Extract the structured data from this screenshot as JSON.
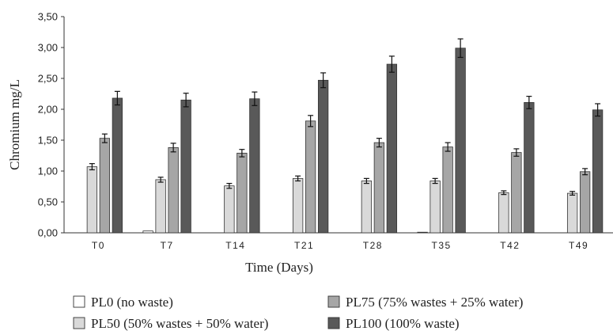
{
  "chart_data": {
    "type": "bar",
    "xlabel": "Time (Days)",
    "ylabel": "Chromium mg/L",
    "ylim": [
      0,
      3.5
    ],
    "yticks": [
      "0,00",
      "0,50",
      "1,00",
      "1,50",
      "2,00",
      "2,50",
      "3,00",
      "3,50"
    ],
    "categories": [
      "T0",
      "T7",
      "T14",
      "T21",
      "T28",
      "T35",
      "T42",
      "T49"
    ],
    "error_bars": true,
    "legend_position": "bottom",
    "series": [
      {
        "name": "PL0 (no waste)",
        "color": "#ffffff",
        "values": [
          0.0,
          0.03,
          0.0,
          0.0,
          0.0,
          0.01,
          0.0,
          0.0
        ],
        "errors": [
          0.0,
          0.0,
          0.0,
          0.0,
          0.0,
          0.0,
          0.0,
          0.0
        ]
      },
      {
        "name": "PL50 (50% wastes + 50% water)",
        "color": "#d9d9d9",
        "values": [
          1.07,
          0.86,
          0.76,
          0.88,
          0.84,
          0.84,
          0.65,
          0.64
        ],
        "errors": [
          0.05,
          0.04,
          0.04,
          0.04,
          0.04,
          0.04,
          0.03,
          0.03
        ]
      },
      {
        "name": "PL75 (75% wastes + 25% water)",
        "color": "#a6a6a6",
        "values": [
          1.53,
          1.38,
          1.29,
          1.81,
          1.46,
          1.39,
          1.3,
          0.99
        ],
        "errors": [
          0.07,
          0.07,
          0.06,
          0.09,
          0.07,
          0.07,
          0.06,
          0.05
        ]
      },
      {
        "name": "PL100 (100% waste)",
        "color": "#595959",
        "values": [
          2.18,
          2.15,
          2.17,
          2.47,
          2.73,
          2.99,
          2.11,
          1.99
        ],
        "errors": [
          0.11,
          0.11,
          0.11,
          0.12,
          0.13,
          0.15,
          0.1,
          0.1
        ]
      }
    ]
  }
}
